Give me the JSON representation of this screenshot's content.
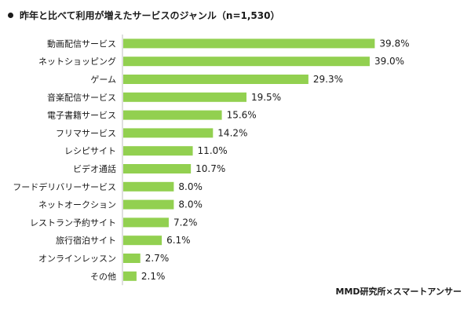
{
  "title": "昨年と比べて利用が増えたサービスのジャンル（n=1,530）",
  "source": "MMD研究所×スマートアンサー",
  "colors": {
    "bar": "#92d050",
    "axis": "#bfbfbf",
    "text": "#1a1a1a"
  },
  "chart_data": {
    "type": "bar",
    "orientation": "horizontal",
    "title": "昨年と比べて利用が増えたサービスのジャンル（n=1,530）",
    "categories": [
      "動画配信サービス",
      "ネットショッピング",
      "ゲーム",
      "音楽配信サービス",
      "電子書籍サービス",
      "フリマサービス",
      "レシピサイト",
      "ビデオ通話",
      "フードデリバリーサービス",
      "ネットオークション",
      "レストラン予約サイト",
      "旅行宿泊サイト",
      "オンラインレッスン",
      "その他"
    ],
    "values": [
      39.8,
      39.0,
      29.3,
      19.5,
      15.6,
      14.2,
      11.0,
      10.7,
      8.0,
      8.0,
      7.2,
      6.1,
      2.7,
      2.1
    ],
    "value_labels": [
      "39.8%",
      "39.0%",
      "29.3%",
      "19.5%",
      "15.6%",
      "14.2%",
      "11.0%",
      "10.7%",
      "8.0%",
      "8.0%",
      "7.2%",
      "6.1%",
      "2.7%",
      "2.1%"
    ],
    "xlim": [
      0,
      42
    ],
    "grid": false,
    "legend": "none"
  }
}
